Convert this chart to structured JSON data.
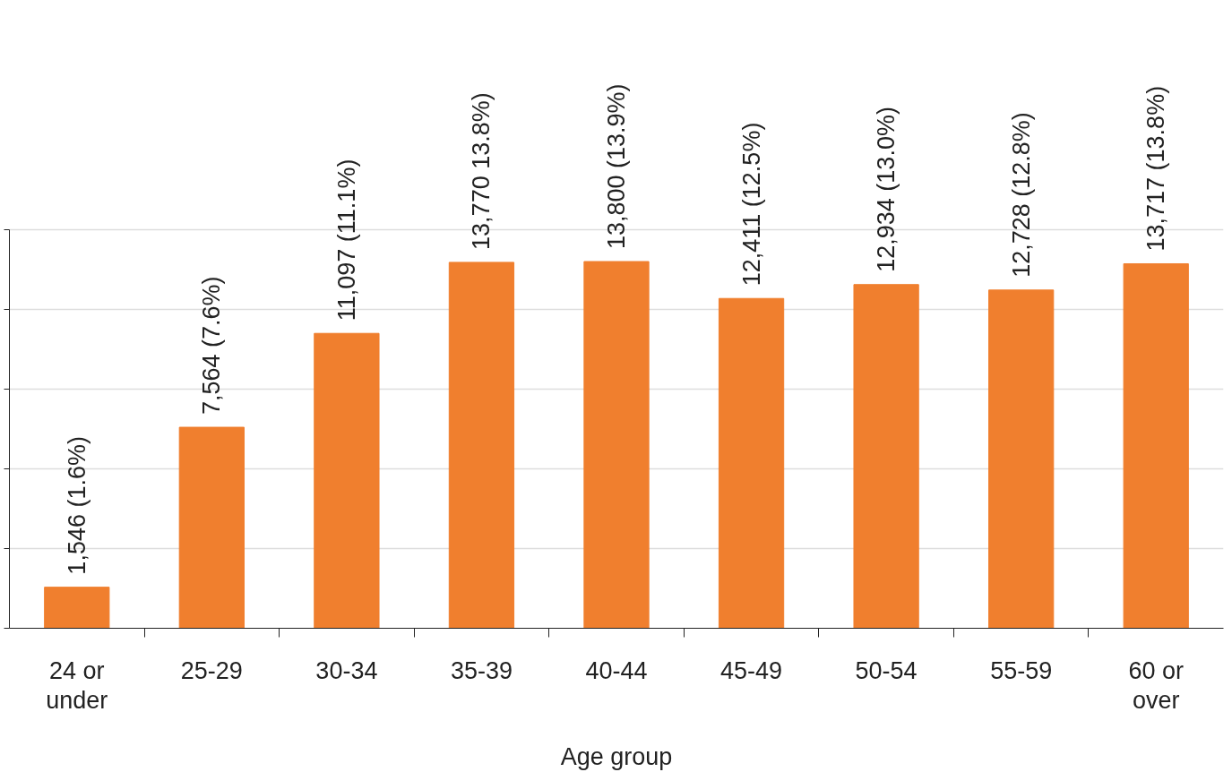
{
  "chart_data": {
    "type": "bar",
    "xlabel": "Age group",
    "categories": [
      "24 or under",
      "25-29",
      "30-34",
      "35-39",
      "40-44",
      "45-49",
      "50-54",
      "55-59",
      "60 or over"
    ],
    "values": [
      1546,
      7564,
      11097,
      13770,
      13800,
      12411,
      12934,
      12728,
      13717
    ],
    "value_labels": [
      "1,546 (1.6%)",
      "7,564  (7.6%)",
      "11,097 (11.1%)",
      "13,770 13.8%)",
      "13,800 (13.9%)",
      "12,411 (12.5%)",
      "12,934 (13.0%)",
      "12,728 (12.8%)",
      "13,717 (13.8%)"
    ],
    "color": "#f07f2e",
    "yticks": [
      {
        "value": 0,
        "label": null
      },
      {
        "value": 3000,
        "label": null
      },
      {
        "value": 6000,
        "label": null
      },
      {
        "value": 9000,
        "label": null
      },
      {
        "value": 12000,
        "label": null
      },
      {
        "value": 15000,
        "label": null
      }
    ],
    "tick_labels": "x",
    "grid": "y"
  }
}
